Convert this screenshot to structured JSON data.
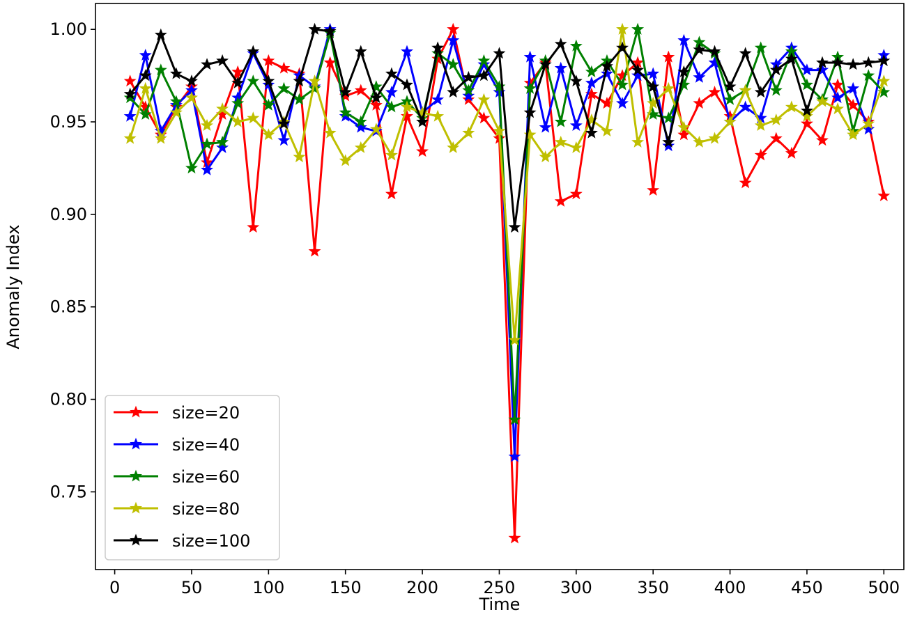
{
  "chart_data": {
    "type": "line",
    "title": "",
    "xlabel": "Time",
    "ylabel": "Anomaly Index",
    "xlim": [
      -12.5,
      513
    ],
    "ylim": [
      0.708,
      1.014
    ],
    "xticks": [
      0,
      50,
      100,
      150,
      200,
      250,
      300,
      350,
      400,
      450,
      500
    ],
    "xtick_labels": [
      "0",
      "50",
      "100",
      "150",
      "200",
      "250",
      "300",
      "350",
      "400",
      "450",
      "500"
    ],
    "yticks": [
      0.75,
      0.8,
      0.85,
      0.9,
      0.95,
      1.0
    ],
    "ytick_labels": [
      "0.75",
      "0.80",
      "0.85",
      "0.90",
      "0.95",
      "1.00"
    ],
    "grid": false,
    "legend_position": "lower-left",
    "marker": "star",
    "x": [
      10,
      20,
      30,
      40,
      50,
      60,
      70,
      80,
      90,
      100,
      110,
      120,
      130,
      140,
      150,
      160,
      170,
      180,
      190,
      200,
      210,
      220,
      230,
      240,
      250,
      260,
      270,
      280,
      290,
      300,
      310,
      320,
      330,
      340,
      350,
      360,
      370,
      380,
      390,
      400,
      410,
      420,
      430,
      440,
      450,
      460,
      470,
      480,
      490,
      500
    ],
    "series": [
      {
        "name": "size=20",
        "color": "#ff0000",
        "values": [
          0.972,
          0.958,
          0.943,
          0.958,
          0.969,
          0.928,
          0.954,
          0.977,
          0.893,
          0.983,
          0.979,
          0.976,
          0.88,
          0.982,
          0.964,
          0.967,
          0.959,
          0.911,
          0.953,
          0.934,
          0.984,
          1.0,
          0.962,
          0.952,
          0.941,
          0.725,
          0.971,
          0.982,
          0.907,
          0.911,
          0.965,
          0.96,
          0.975,
          0.982,
          0.913,
          0.985,
          0.943,
          0.96,
          0.966,
          0.953,
          0.917,
          0.932,
          0.941,
          0.933,
          0.949,
          0.94,
          0.97,
          0.959,
          0.95,
          0.91
        ]
      },
      {
        "name": "size=40",
        "color": "#0000ff",
        "values": [
          0.953,
          0.986,
          0.945,
          0.959,
          0.967,
          0.924,
          0.936,
          0.963,
          0.987,
          0.97,
          0.94,
          0.975,
          0.969,
          1.0,
          0.953,
          0.947,
          0.945,
          0.966,
          0.988,
          0.955,
          0.962,
          0.994,
          0.964,
          0.981,
          0.966,
          0.769,
          0.985,
          0.947,
          0.979,
          0.948,
          0.971,
          0.976,
          0.96,
          0.975,
          0.976,
          0.937,
          0.994,
          0.974,
          0.982,
          0.95,
          0.958,
          0.952,
          0.981,
          0.99,
          0.978,
          0.978,
          0.963,
          0.968,
          0.946,
          0.986
        ]
      },
      {
        "name": "size=60",
        "color": "#008000",
        "values": [
          0.963,
          0.954,
          0.978,
          0.961,
          0.925,
          0.938,
          0.939,
          0.96,
          0.972,
          0.959,
          0.968,
          0.962,
          0.968,
          0.998,
          0.955,
          0.95,
          0.969,
          0.958,
          0.961,
          0.952,
          0.987,
          0.981,
          0.967,
          0.983,
          0.969,
          0.789,
          0.968,
          0.983,
          0.95,
          0.991,
          0.977,
          0.983,
          0.97,
          1.0,
          0.954,
          0.952,
          0.97,
          0.993,
          0.987,
          0.962,
          0.967,
          0.99,
          0.967,
          0.988,
          0.97,
          0.962,
          0.985,
          0.945,
          0.975,
          0.966
        ]
      },
      {
        "name": "size=80",
        "color": "#bfbf00",
        "values": [
          0.941,
          0.968,
          0.941,
          0.955,
          0.963,
          0.948,
          0.957,
          0.95,
          0.952,
          0.943,
          0.95,
          0.931,
          0.972,
          0.944,
          0.929,
          0.936,
          0.946,
          0.932,
          0.958,
          0.955,
          0.953,
          0.936,
          0.944,
          0.962,
          0.945,
          0.832,
          0.943,
          0.931,
          0.939,
          0.936,
          0.951,
          0.945,
          1.0,
          0.939,
          0.96,
          0.968,
          0.947,
          0.939,
          0.941,
          0.95,
          0.967,
          0.948,
          0.951,
          0.958,
          0.953,
          0.961,
          0.957,
          0.943,
          0.949,
          0.972
        ]
      },
      {
        "name": "size=100",
        "color": "#000000",
        "values": [
          0.965,
          0.975,
          0.997,
          0.976,
          0.972,
          0.981,
          0.983,
          0.971,
          0.988,
          0.972,
          0.949,
          0.972,
          1.0,
          0.999,
          0.966,
          0.988,
          0.963,
          0.976,
          0.97,
          0.95,
          0.99,
          0.966,
          0.974,
          0.975,
          0.987,
          0.893,
          0.955,
          0.981,
          0.992,
          0.972,
          0.944,
          0.98,
          0.99,
          0.978,
          0.969,
          0.939,
          0.977,
          0.989,
          0.988,
          0.969,
          0.987,
          0.966,
          0.978,
          0.984,
          0.956,
          0.982,
          0.982,
          0.981,
          0.982,
          0.983
        ]
      }
    ]
  }
}
